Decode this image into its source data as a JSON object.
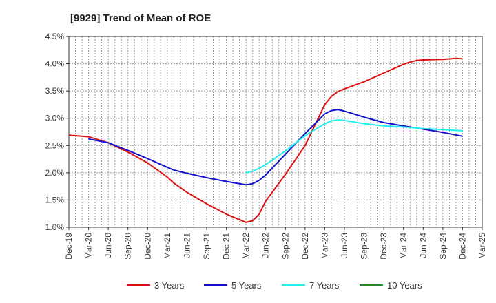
{
  "chart_data": {
    "type": "line",
    "title": "[9929]  Trend of Mean of ROE",
    "xlabel": "",
    "ylabel": "",
    "x_ticks": [
      "Dec-19",
      "Mar-20",
      "Jun-20",
      "Sep-20",
      "Dec-20",
      "Mar-21",
      "Jun-21",
      "Sep-21",
      "Dec-21",
      "Mar-22",
      "Jun-22",
      "Sep-22",
      "Dec-22",
      "Mar-23",
      "Jun-23",
      "Sep-23",
      "Dec-23",
      "Mar-24",
      "Jun-24",
      "Sep-24",
      "Dec-24",
      "Mar-25"
    ],
    "y_ticks": [
      "1.0%",
      "1.5%",
      "2.0%",
      "2.5%",
      "3.0%",
      "3.5%",
      "4.0%",
      "4.5%"
    ],
    "ylim": [
      1.0,
      4.5
    ],
    "y_unit": "%",
    "grid": true,
    "legend_position": "bottom",
    "series": [
      {
        "name": "3 Years",
        "color": "#dd1111",
        "x": [
          "Dec-19",
          "Mar-20",
          "Jun-20",
          "Sep-20",
          "Dec-20",
          "Mar-21",
          "Apr-21",
          "Jun-21",
          "Sep-21",
          "Dec-21",
          "Mar-22",
          "Apr-22",
          "May-22",
          "Jun-22",
          "Sep-22",
          "Dec-22",
          "Mar-23",
          "Apr-23",
          "May-23",
          "Jun-23",
          "Sep-23",
          "Dec-23",
          "Mar-24",
          "Apr-24",
          "May-24",
          "Jun-24",
          "Sep-24",
          "Nov-24",
          "Dec-24"
        ],
        "values": [
          2.69,
          2.66,
          2.55,
          2.38,
          2.18,
          1.92,
          1.81,
          1.64,
          1.43,
          1.24,
          1.09,
          1.12,
          1.24,
          1.48,
          1.97,
          2.5,
          3.25,
          3.4,
          3.49,
          3.54,
          3.67,
          3.83,
          3.99,
          4.03,
          4.06,
          4.07,
          4.08,
          4.1,
          4.09
        ]
      },
      {
        "name": "5 Years",
        "color": "#1111cc",
        "x": [
          "Mar-20",
          "Jun-20",
          "Sep-20",
          "Dec-20",
          "Mar-21",
          "Apr-21",
          "Jun-21",
          "Sep-21",
          "Dec-21",
          "Mar-22",
          "Apr-22",
          "May-22",
          "Jun-22",
          "Sep-22",
          "Dec-22",
          "Mar-23",
          "Apr-23",
          "May-23",
          "Jun-23",
          "Sep-23",
          "Dec-23",
          "Mar-24",
          "Jun-24",
          "Sep-24",
          "Dec-24"
        ],
        "values": [
          2.62,
          2.55,
          2.41,
          2.26,
          2.1,
          2.05,
          1.99,
          1.91,
          1.84,
          1.78,
          1.8,
          1.86,
          1.96,
          2.34,
          2.72,
          3.08,
          3.14,
          3.16,
          3.13,
          3.02,
          2.92,
          2.86,
          2.8,
          2.74,
          2.67
        ]
      },
      {
        "name": "7 Years",
        "color": "#22eeee",
        "x": [
          "Mar-22",
          "Apr-22",
          "May-22",
          "Jun-22",
          "Sep-22",
          "Dec-22",
          "Mar-23",
          "Apr-23",
          "May-23",
          "Jun-23",
          "Sep-23",
          "Dec-23",
          "Mar-24",
          "Jun-24",
          "Sep-24",
          "Dec-24"
        ],
        "values": [
          2.0,
          2.03,
          2.08,
          2.15,
          2.4,
          2.68,
          2.9,
          2.95,
          2.97,
          2.96,
          2.9,
          2.86,
          2.84,
          2.81,
          2.79,
          2.77
        ]
      },
      {
        "name": "10 Years",
        "color": "#228822",
        "x": [],
        "values": []
      }
    ]
  }
}
